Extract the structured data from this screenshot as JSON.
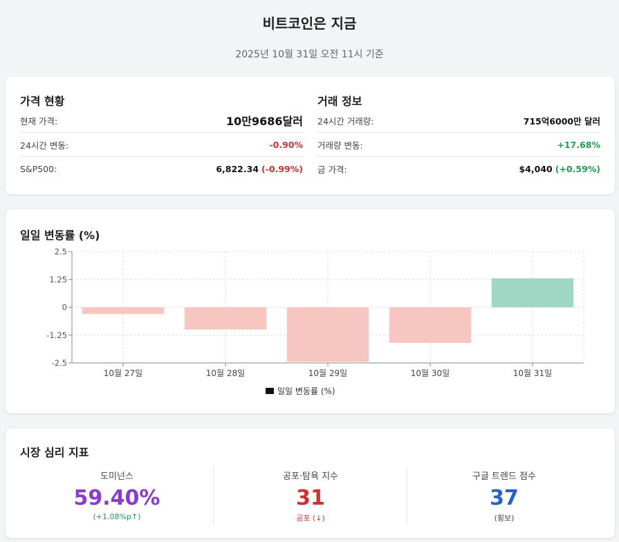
{
  "header": {
    "title": "비트코인은 지금",
    "subtitle": "2025년 10월 31일 오전 11시 기준"
  },
  "price": {
    "title": "가격 현황",
    "rows": [
      {
        "label": "현재 가격:",
        "value": "10만9686달러"
      },
      {
        "label": "24시간 변동:",
        "value": "-0.90%"
      },
      {
        "label": "S&P500:",
        "value": "6,822.34",
        "change": "(-0.99%)"
      }
    ]
  },
  "trade": {
    "title": "거래 정보",
    "rows": [
      {
        "label": "24시간 거래량:",
        "value": "715억6000만 달러"
      },
      {
        "label": "거래량 변동:",
        "value": "+17.68%"
      },
      {
        "label": "금 가격:",
        "value": "$4,040",
        "change": "(+0.59%)"
      }
    ]
  },
  "chart_section": {
    "title": "일일 변동률 (%)"
  },
  "chart_data": {
    "type": "bar",
    "categories": [
      "10월 27일",
      "10월 28일",
      "10월 29일",
      "10월 30일",
      "10월 31일"
    ],
    "series": [
      {
        "name": "일일 변동률 (%)",
        "values": [
          -0.3,
          -1.0,
          -2.45,
          -1.6,
          1.3
        ]
      }
    ],
    "ylim": [
      -2.5,
      2.5
    ],
    "yticks": [
      "2.5",
      "1.25",
      "0",
      "-1.25",
      "-2.5"
    ],
    "ytick_values": [
      2.5,
      1.25,
      0,
      -1.25,
      -2.5
    ],
    "grid": true,
    "legend": "bottom",
    "colors": {
      "negative": "#f8c6c0",
      "positive": "#9ed8c4",
      "legend_swatch": "#111111"
    }
  },
  "sentiment": {
    "title": "시장 심리 지표",
    "metrics": [
      {
        "label": "도미넌스",
        "value": "59.40%",
        "sub": "(+1.08%p↑)",
        "color": "#8a3ad6",
        "sub_color": "#1e9e50"
      },
      {
        "label": "공포·탐욕 지수",
        "value": "31",
        "sub": "공포 (↓)",
        "color": "#d32f2f",
        "sub_color": "#d32f2f"
      },
      {
        "label": "구글 트렌드 점수",
        "value": "37",
        "sub": "(횡보)",
        "color": "#2563c9",
        "sub_color": "#444444"
      }
    ]
  }
}
